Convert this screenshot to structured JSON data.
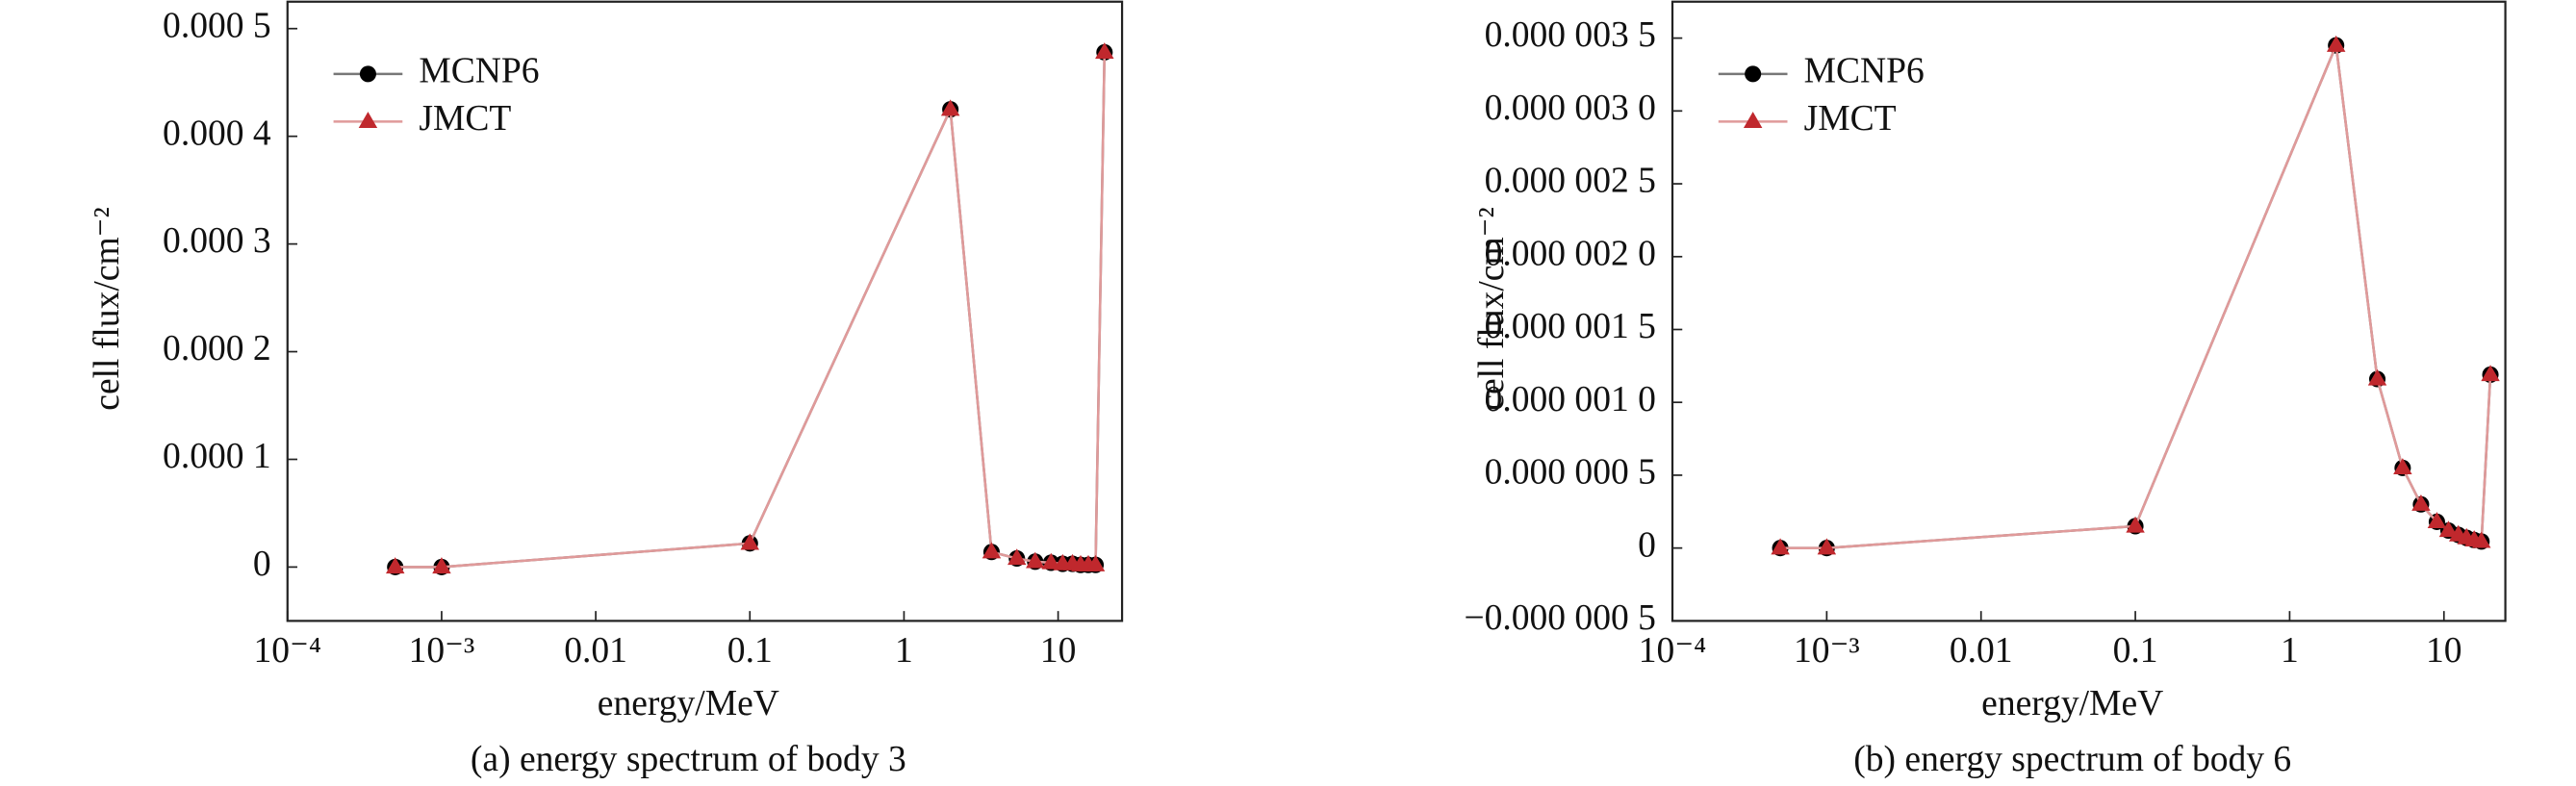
{
  "chart_data": [
    {
      "type": "line",
      "caption": "(a) energy spectrum of body 3",
      "x_label": "energy/MeV",
      "y_label": "cell flux/cm⁻²",
      "log_x": true,
      "xlim": [
        0.0001,
        26
      ],
      "ylim": [
        -5e-05,
        0.000525
      ],
      "xticks": [
        {
          "value": 0.0001,
          "label": "10⁻⁴"
        },
        {
          "value": 0.001,
          "label": "10⁻³"
        },
        0.01,
        0.1,
        1,
        10
      ],
      "yticks": [
        0,
        {
          "value": 0.0001,
          "label": "0.000 1"
        },
        {
          "value": 0.0002,
          "label": "0.000 2"
        },
        {
          "value": 0.0003,
          "label": "0.000 3"
        },
        {
          "value": 0.0004,
          "label": "0.000 4"
        },
        {
          "value": 0.0005,
          "label": "0.000 5"
        }
      ],
      "legend": "upper left",
      "x": [
        0.0005,
        0.001,
        0.1,
        2,
        3.7,
        5.4,
        7.1,
        9,
        10.7,
        12.4,
        14,
        15.7,
        17.5,
        20
      ],
      "series": [
        {
          "name": "MCNP6",
          "color": "#000000",
          "line_color": "#777777",
          "marker": "circle",
          "values": [
            0,
            0,
            2.2e-05,
            0.000425,
            1.4e-05,
            8e-06,
            5e-06,
            4e-06,
            3e-06,
            3e-06,
            2e-06,
            2e-06,
            2e-06,
            0.000478
          ]
        },
        {
          "name": "JMCT",
          "color": "#c0282d",
          "line_color": "#e09a9a",
          "marker": "triangle",
          "values": [
            0,
            0,
            2.2e-05,
            0.000425,
            1.4e-05,
            8e-06,
            5e-06,
            4e-06,
            3e-06,
            3e-06,
            2e-06,
            2e-06,
            2e-06,
            0.000478
          ]
        }
      ]
    },
    {
      "type": "line",
      "caption": "(b) energy spectrum of body 6",
      "x_label": "energy/MeV",
      "y_label": "cell flux/cm⁻²",
      "log_x": true,
      "xlim": [
        0.0001,
        25
      ],
      "ylim": [
        -5e-07,
        3.75e-06
      ],
      "xticks": [
        {
          "value": 0.0001,
          "label": "10⁻⁴"
        },
        {
          "value": 0.001,
          "label": "10⁻³"
        },
        0.01,
        0.1,
        1,
        10
      ],
      "yticks": [
        {
          "value": -5e-07,
          "label": "−0.000 000 5"
        },
        0,
        {
          "value": 5e-07,
          "label": "0.000 000 5"
        },
        {
          "value": 1e-06,
          "label": "0.000 001 0"
        },
        {
          "value": 1.5e-06,
          "label": "0.000 001 5"
        },
        {
          "value": 2e-06,
          "label": "0.000 002 0"
        },
        {
          "value": 2.5e-06,
          "label": "0.000 002 5"
        },
        {
          "value": 3e-06,
          "label": "0.000 003 0"
        },
        {
          "value": 3.5e-06,
          "label": "0.000 003 5"
        }
      ],
      "legend": "upper left",
      "x": [
        0.0005,
        0.001,
        0.1,
        2,
        3.7,
        5.4,
        7.1,
        9,
        10.7,
        12.4,
        14,
        15.7,
        17.5,
        20
      ],
      "series": [
        {
          "name": "MCNP6",
          "color": "#000000",
          "line_color": "#777777",
          "marker": "circle",
          "values": [
            0,
            0,
            1.5e-07,
            3.45e-06,
            1.16e-06,
            5.5e-07,
            3e-07,
            1.8e-07,
            1.2e-07,
            9e-08,
            7e-08,
            5.5e-08,
            4.5e-08,
            1.19e-06
          ]
        },
        {
          "name": "JMCT",
          "color": "#c0282d",
          "line_color": "#e09a9a",
          "marker": "triangle",
          "values": [
            0,
            0,
            1.5e-07,
            3.45e-06,
            1.16e-06,
            5.5e-07,
            3e-07,
            1.8e-07,
            1.2e-07,
            9e-08,
            7e-08,
            5.5e-08,
            4.5e-08,
            1.19e-06
          ]
        }
      ]
    }
  ]
}
